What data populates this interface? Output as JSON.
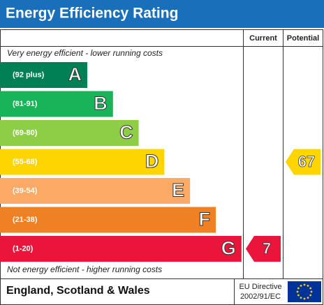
{
  "title": "Energy Efficiency Rating",
  "headers": {
    "current": "Current",
    "potential": "Potential"
  },
  "top_note": "Very energy efficient - lower running costs",
  "bottom_note": "Not energy efficient - higher running costs",
  "bands": [
    {
      "range": "(92 plus)",
      "letter": "A",
      "color": "#008054"
    },
    {
      "range": "(81-91)",
      "letter": "B",
      "color": "#19b459"
    },
    {
      "range": "(69-80)",
      "letter": "C",
      "color": "#8dce46"
    },
    {
      "range": "(55-68)",
      "letter": "D",
      "color": "#ffd500",
      "potential": 67
    },
    {
      "range": "(39-54)",
      "letter": "E",
      "color": "#fcaa65"
    },
    {
      "range": "(21-38)",
      "letter": "F",
      "color": "#ef8023"
    },
    {
      "range": "(1-20)",
      "letter": "G",
      "color": "#e9153b",
      "current": 7
    }
  ],
  "footer": {
    "region": "England, Scotland & Wales",
    "directive": [
      "EU Directive",
      "2002/91/EC"
    ]
  }
}
